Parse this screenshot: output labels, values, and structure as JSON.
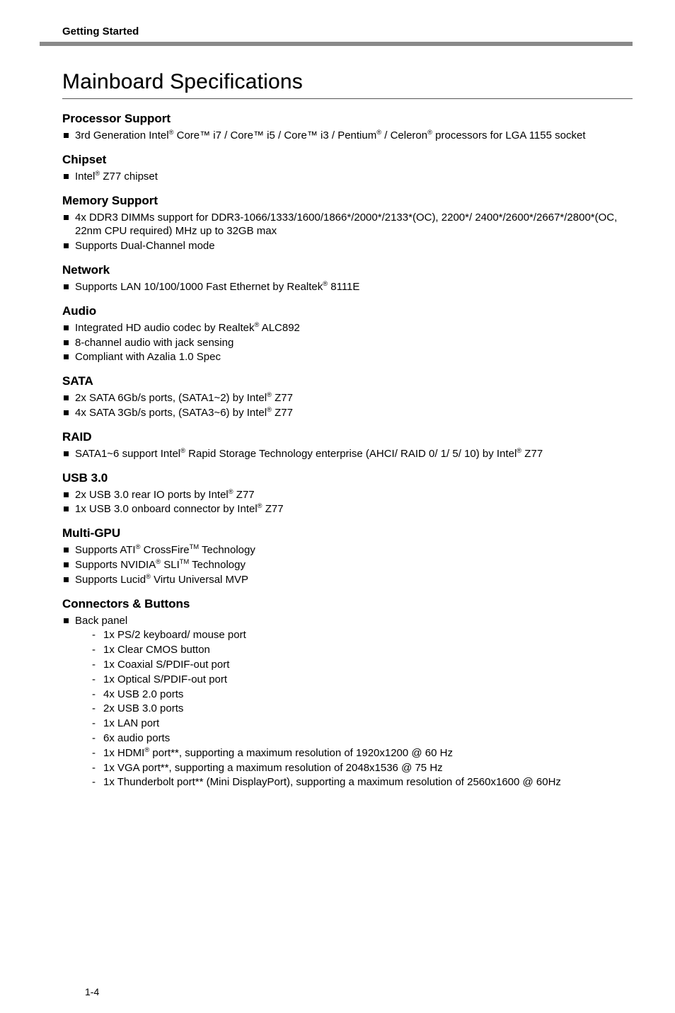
{
  "page": {
    "running_header": "Getting Started",
    "page_number": "1-4",
    "title": "Mainboard Specifications"
  },
  "sections": {
    "processor": {
      "title": "Processor Support",
      "items": [
        "3rd Generation Intel® Core™ i7 / Core™ i5 / Core™ i3 / Pentium® / Celeron® processors for LGA 1155 socket"
      ]
    },
    "chipset": {
      "title": "Chipset",
      "items": [
        "Intel® Z77 chipset"
      ]
    },
    "memory": {
      "title": "Memory Support",
      "items": [
        "4x DDR3 DIMMs support for DDR3-1066/1333/1600/1866*/2000*/2133*(OC), 2200*/ 2400*/2600*/2667*/2800*(OC, 22nm CPU required) MHz up to 32GB max",
        "Supports Dual-Channel mode"
      ]
    },
    "network": {
      "title": "Network",
      "items": [
        "Supports LAN 10/100/1000 Fast Ethernet by Realtek® 8111E"
      ]
    },
    "audio": {
      "title": "Audio",
      "items": [
        "Integrated HD audio codec by Realtek® ALC892",
        "8-channel audio with jack sensing",
        "Compliant with Azalia 1.0 Spec"
      ]
    },
    "sata": {
      "title": "SATA",
      "items": [
        "2x SATA 6Gb/s ports, (SATA1~2) by Intel® Z77",
        "4x SATA 3Gb/s ports, (SATA3~6) by Intel® Z77"
      ]
    },
    "raid": {
      "title": "RAID",
      "items": [
        "SATA1~6 support Intel® Rapid Storage Technology enterprise (AHCI/ RAID 0/ 1/ 5/ 10) by Intel® Z77"
      ]
    },
    "usb30": {
      "title": "USB 3.0",
      "items": [
        "2x USB 3.0 rear IO ports by Intel® Z77",
        "1x USB 3.0 onboard connector by Intel® Z77"
      ]
    },
    "multigpu": {
      "title": "Multi-GPU",
      "items": [
        "Supports ATI® CrossFire™ Technology",
        "Supports NVIDIA® SLI™ Technology",
        "Supports Lucid® Virtu Universal MVP"
      ]
    },
    "connectors": {
      "title": "Connectors & Buttons",
      "back_panel_label": "Back panel",
      "back_panel_items": [
        "1x PS/2 keyboard/ mouse port",
        "1x Clear CMOS button",
        "1x Coaxial S/PDIF-out port",
        "1x Optical S/PDIF-out port",
        "4x USB 2.0 ports",
        "2x USB 3.0 ports",
        "1x LAN port",
        "6x audio ports",
        "1x HDMI® port**, supporting a maximum resolution of 1920x1200 @ 60 Hz",
        "1x VGA port**, supporting a maximum resolution of 2048x1536 @ 75 Hz",
        "1x Thunderbolt port** (Mini DisplayPort), supporting a maximum resolution of 2560x1600 @ 60Hz"
      ]
    }
  }
}
